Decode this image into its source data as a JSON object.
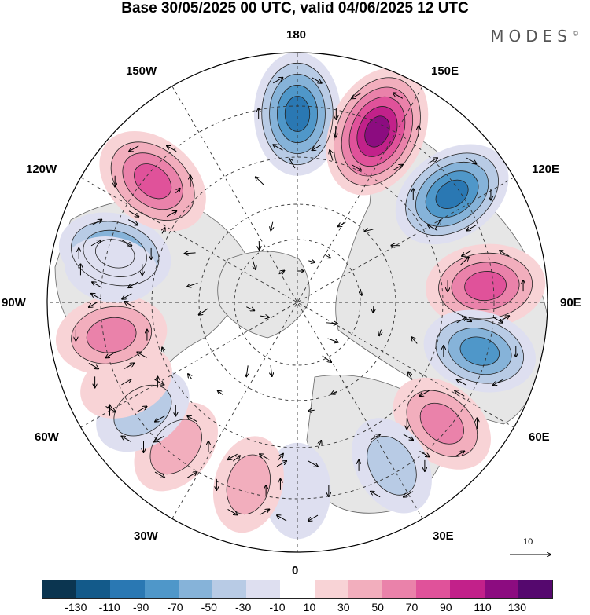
{
  "title": "Base 30/05/2025 00 UTC, valid 04/06/2025 12 UTC",
  "brand": "MODES",
  "brand_mark": "©",
  "longitude_labels": {
    "top": "180",
    "bottom": "0",
    "left": "90W",
    "right": "90E",
    "w150": "150W",
    "e150": "150E",
    "w120": "120W",
    "e120": "120E",
    "w60": "60W",
    "e60": "60E",
    "w30": "30W",
    "e30": "30E"
  },
  "reference_vector": "10",
  "colorbar": {
    "colors": [
      "#0b3550",
      "#135a8a",
      "#2a78b3",
      "#4f97c9",
      "#86b3d9",
      "#b8cbe5",
      "#dedff0",
      "#ffffff",
      "#f8d3d6",
      "#f2aebd",
      "#ea82aa",
      "#e0529a",
      "#c2218a",
      "#8c0c80",
      "#55086e"
    ],
    "tick_labels": [
      "-130",
      "-110",
      "-90",
      "-70",
      "-50",
      "-30",
      "-10",
      "10",
      "30",
      "50",
      "70",
      "90",
      "110",
      "130"
    ]
  },
  "anomaly_centers": [
    {
      "lon": 180,
      "value": -95
    },
    {
      "lon": 155,
      "value": 120
    },
    {
      "lon": 125,
      "value": -95
    },
    {
      "lon": 95,
      "value": 85
    },
    {
      "lon": 75,
      "value": -70
    },
    {
      "lon": 50,
      "value": 60
    },
    {
      "lon": 30,
      "value": -40
    },
    {
      "lon": 0,
      "value": -25
    },
    {
      "lon": -15,
      "value": 30
    },
    {
      "lon": -40,
      "value": 35
    },
    {
      "lon": -55,
      "value": -40
    },
    {
      "lon": -65,
      "value": 25
    },
    {
      "lon": -80,
      "value": 65
    },
    {
      "lon": -105,
      "value": -70
    },
    {
      "lon": -130,
      "value": 85
    },
    {
      "lon": -100,
      "value": -20
    }
  ]
}
